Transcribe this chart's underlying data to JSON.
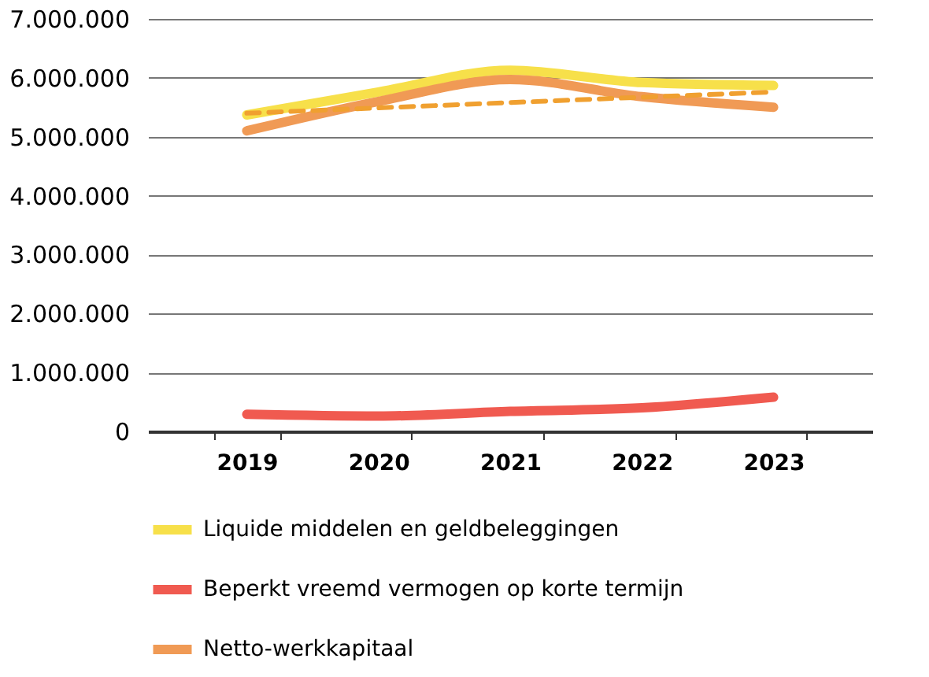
{
  "chart_data": {
    "type": "line",
    "categories": [
      "2019",
      "2020",
      "2021",
      "2022",
      "2023"
    ],
    "series": [
      {
        "name": "Liquide middelen en geldbeleggingen",
        "color": "#f7e04a",
        "values": [
          5370000,
          5760000,
          6130000,
          5920000,
          5870000
        ]
      },
      {
        "name": "Beperkt vreemd vermogen op korte termijn",
        "color": "#f05a50",
        "values": [
          290000,
          260000,
          340000,
          400000,
          580000
        ]
      },
      {
        "name": "Netto-werkkapitaal",
        "color": "#f09a55",
        "values": [
          5100000,
          5600000,
          5970000,
          5680000,
          5500000
        ]
      },
      {
        "type": "line",
        "color": "#f0a030",
        "line_style": "dashed",
        "values": [
          5400000,
          5490000,
          5580000,
          5670000,
          5760000
        ]
      }
    ],
    "ylim": [
      0,
      7000000
    ],
    "yticks": [
      {
        "value": 0,
        "label": "0"
      },
      {
        "value": 1000000,
        "label": "1.000.000"
      },
      {
        "value": 2000000,
        "label": "2.000.000"
      },
      {
        "value": 3000000,
        "label": "3.000.000"
      },
      {
        "value": 4000000,
        "label": "4.000.000"
      },
      {
        "value": 5000000,
        "label": "5.000.000"
      },
      {
        "value": 6000000,
        "label": "6.000.000"
      },
      {
        "value": 7000000,
        "label": "7.000.000"
      }
    ],
    "grid": "y",
    "legend": "bottom",
    "line_style": "solid",
    "marker": "none"
  }
}
